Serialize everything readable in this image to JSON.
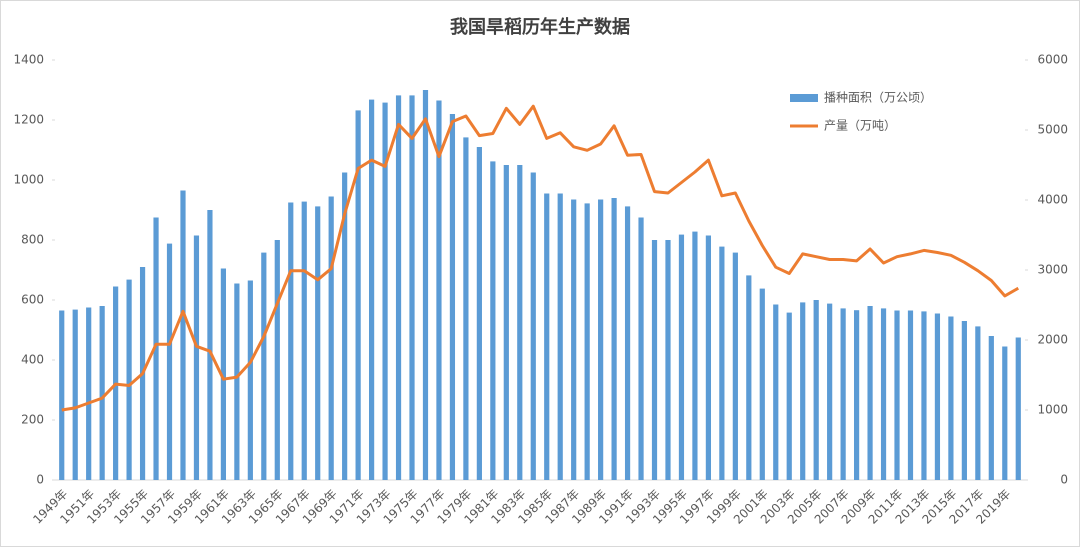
{
  "chart_data": {
    "type": "bar_line",
    "title": "我国旱稻历年生产数据",
    "categories": [
      "1949年",
      null,
      "1951年",
      null,
      "1953年",
      null,
      "1955年",
      null,
      "1957年",
      null,
      "1959年",
      null,
      "1961年",
      null,
      "1963年",
      null,
      "1965年",
      null,
      "1967年",
      null,
      "1969年",
      null,
      "1971年",
      null,
      "1973年",
      null,
      "1975年",
      null,
      "1977年",
      null,
      "1979年",
      null,
      "1981年",
      null,
      "1983年",
      null,
      "1985年",
      null,
      "1987年",
      null,
      "1989年",
      null,
      "1991年",
      null,
      "1993年",
      null,
      "1995年",
      null,
      "1997年",
      null,
      "1999年",
      null,
      "2001年",
      null,
      "2003年",
      null,
      "2005年",
      null,
      "2007年",
      null,
      "2009年",
      null,
      "2011年",
      null,
      "2013年",
      null,
      "2015年",
      null,
      "2017年",
      null,
      "2019年",
      null
    ],
    "series": [
      {
        "name": "播种面积（万公顷）",
        "type": "bar",
        "color": "#5b9bd5",
        "values": [
          565,
          568,
          575,
          580,
          645,
          668,
          710,
          875,
          788,
          965,
          815,
          900,
          705,
          655,
          665,
          758,
          800,
          925,
          928,
          912,
          945,
          1025,
          1232,
          1268,
          1258,
          1282,
          1282,
          1300,
          1265,
          1220,
          1142,
          1110,
          1062,
          1050,
          1050,
          1025,
          955,
          955,
          935,
          922,
          935,
          940,
          912,
          875,
          800,
          800,
          818,
          828,
          815,
          778,
          758,
          682,
          638,
          585,
          558,
          592,
          600,
          588,
          572,
          566,
          580,
          572,
          565,
          565,
          562,
          555,
          545,
          530,
          512,
          480,
          445,
          475
        ]
      },
      {
        "name": "产量（万吨）",
        "type": "line",
        "axis": "y2",
        "color": "#ed7d31",
        "values": [
          1000,
          1030,
          1100,
          1170,
          1370,
          1350,
          1520,
          1940,
          1940,
          2410,
          1910,
          1840,
          1440,
          1470,
          1680,
          2050,
          2520,
          2990,
          2990,
          2860,
          3020,
          3800,
          4450,
          4570,
          4480,
          5080,
          4880,
          5160,
          4620,
          5120,
          5200,
          4920,
          4950,
          5310,
          5080,
          5340,
          4880,
          4960,
          4760,
          4710,
          4800,
          5060,
          4640,
          4650,
          4120,
          4100,
          4250,
          4400,
          4570,
          4060,
          4100,
          3700,
          3350,
          3040,
          2950,
          3230,
          3190,
          3150,
          3150,
          3130,
          3300,
          3100,
          3190,
          3230,
          3280,
          3250,
          3210,
          3110,
          2990,
          2850,
          2630,
          2740
        ]
      }
    ],
    "ylim": [
      0,
      1400
    ],
    "yticks": [
      0,
      200,
      400,
      600,
      800,
      1000,
      1200,
      1400
    ],
    "y2lim": [
      0,
      6000
    ],
    "y2ticks": [
      0,
      1000,
      2000,
      3000,
      4000,
      5000,
      6000
    ],
    "legend": "upper right"
  }
}
